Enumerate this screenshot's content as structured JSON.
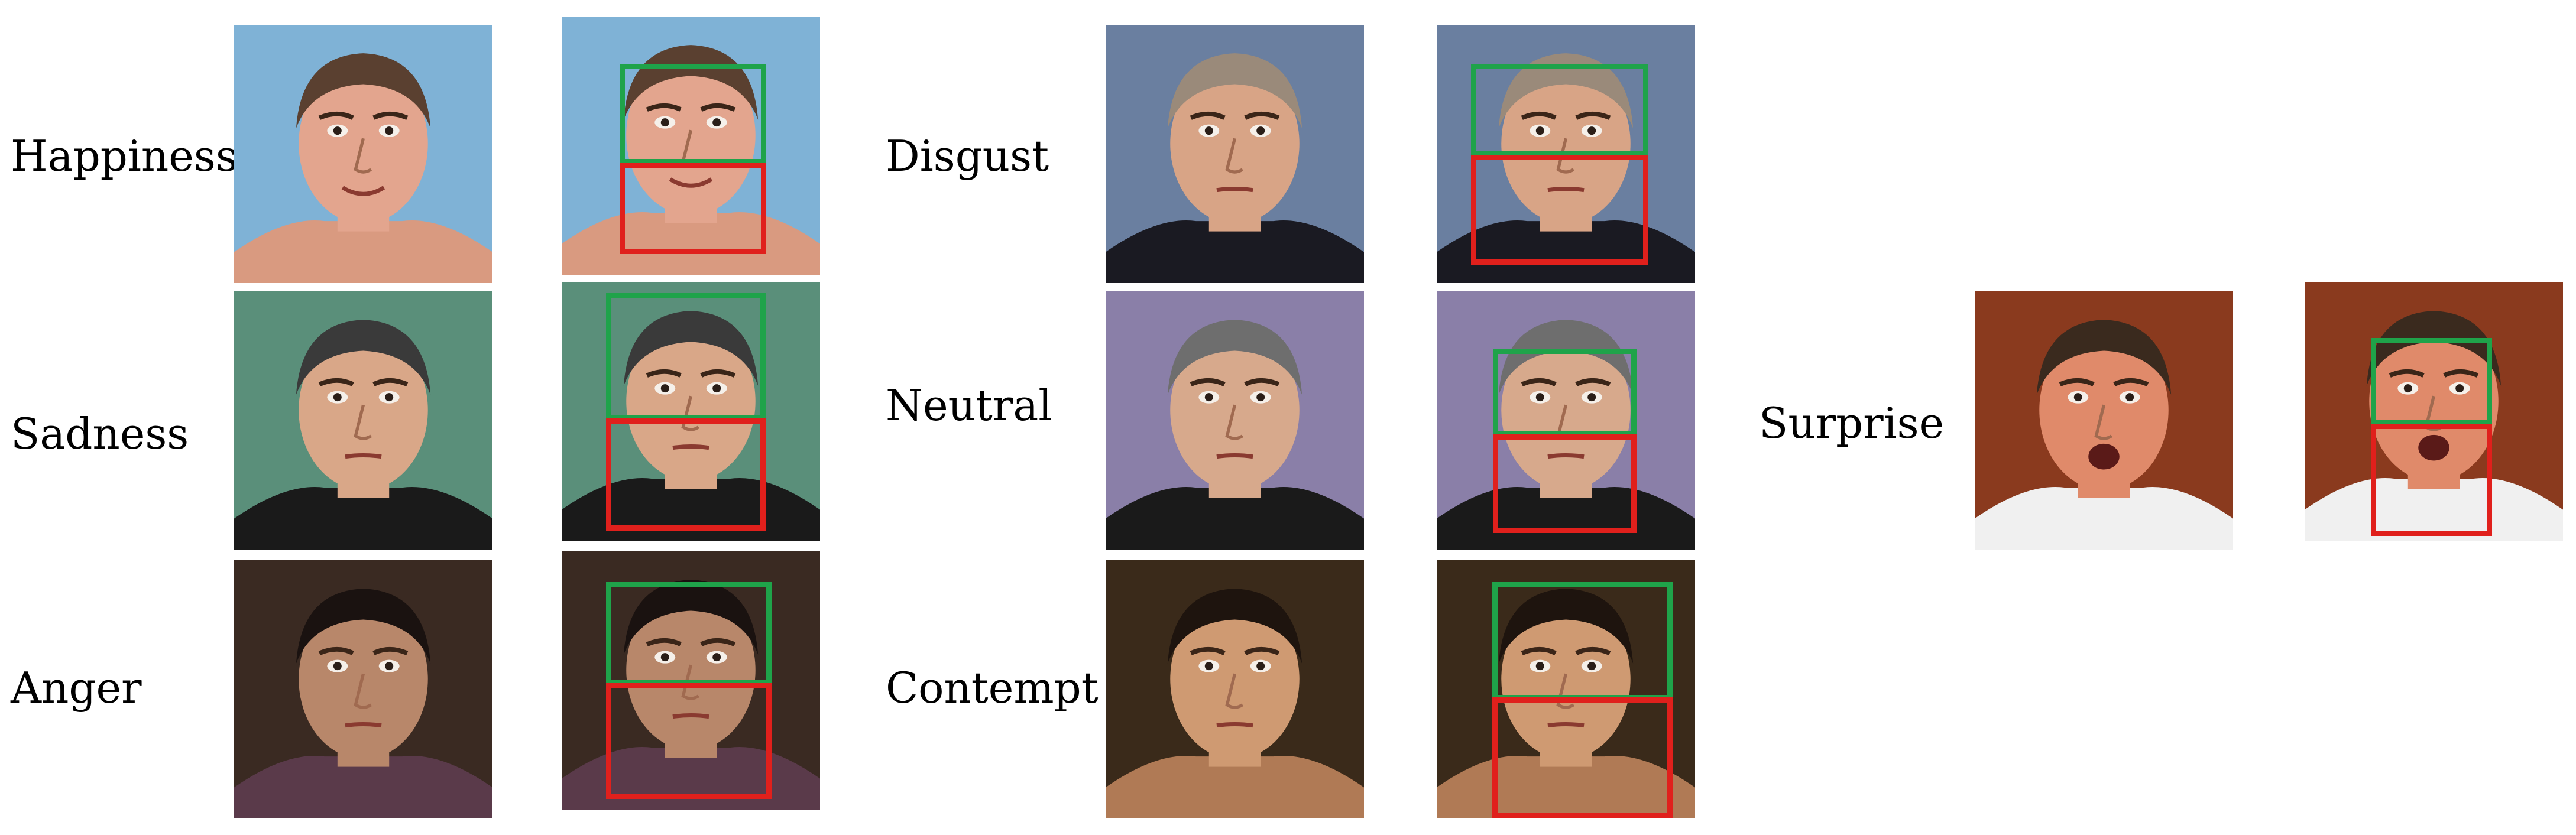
{
  "rows": [
    {
      "key": "happiness",
      "label": "Happiness"
    },
    {
      "key": "sadness",
      "label": "Sadness"
    },
    {
      "key": "anger",
      "label": "Anger"
    },
    {
      "key": "disgust",
      "label": "Disgust"
    },
    {
      "key": "neutral",
      "label": "Neutral"
    },
    {
      "key": "contempt",
      "label": "Contempt"
    },
    {
      "key": "surprise",
      "label": "Surprise"
    }
  ],
  "box_colors": {
    "upper_face": "#1fa34a",
    "lower_face": "#e0201c"
  },
  "face_colors": {
    "happiness": {
      "bg": "#7fb2d6",
      "skin": "#e3a58e",
      "hair": "#5a4030",
      "clothes": "#d99a80"
    },
    "sadness": {
      "bg": "#5a8f7a",
      "skin": "#d9a788",
      "hair": "#3a3a3a",
      "clothes": "#1a1a1a"
    },
    "anger": {
      "bg": "#3a2a22",
      "skin": "#b8876a",
      "hair": "#1a1210",
      "clothes": "#5a3a4a"
    },
    "disgust": {
      "bg": "#6a7fa0",
      "skin": "#d8a486",
      "hair": "#9a8a7a",
      "clothes": "#1a1a22"
    },
    "neutral": {
      "bg": "#8a7fa8",
      "skin": "#d7a98c",
      "hair": "#6e6e6e",
      "clothes": "#1a1a1a"
    },
    "contempt": {
      "bg": "#3a2a1a",
      "skin": "#cf9a72",
      "hair": "#1e140e",
      "clothes": "#b07a55"
    },
    "surprise": {
      "bg": "#8a3a1e",
      "skin": "#e08a6a",
      "hair": "#3a2a1e",
      "clothes": "#f0f0f0"
    }
  }
}
